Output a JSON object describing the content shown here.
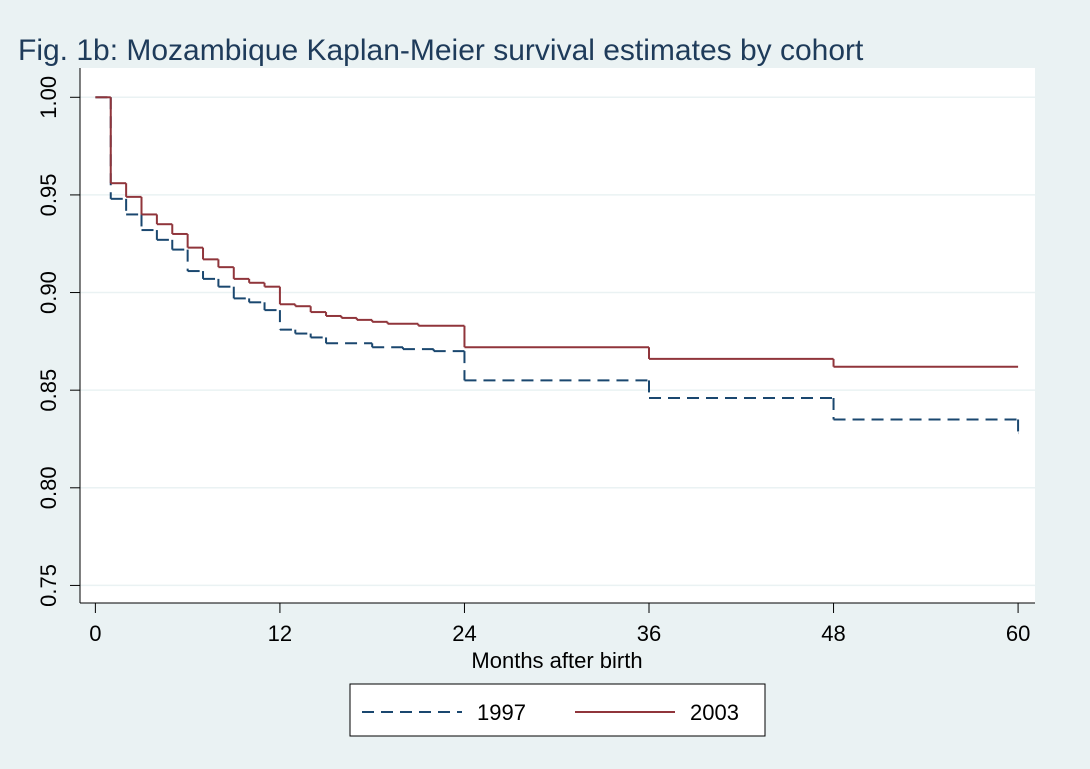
{
  "chart_data": {
    "type": "step",
    "title": "Fig. 1b: Mozambique Kaplan-Meier survival estimates by cohort",
    "x_label": "Months after birth",
    "xlim": [
      -1,
      61.1
    ],
    "xticks": [
      0,
      12,
      24,
      36,
      48,
      60
    ],
    "ylim": [
      0.741,
      1.015
    ],
    "yticks": [
      {
        "value": 1,
        "label": "1.00"
      },
      0.95,
      {
        "value": 0.9,
        "label": "0.90"
      },
      0.85,
      {
        "value": 0.8,
        "label": "0.80"
      },
      0.75
    ],
    "grid": true,
    "series": [
      {
        "name": "1997",
        "color": "#1a476f",
        "dash": true,
        "x": [
          0,
          1,
          2,
          3,
          4,
          5,
          6,
          7,
          8,
          9,
          10,
          11,
          12,
          13,
          14,
          15,
          18,
          20,
          22,
          24,
          36,
          48,
          60
        ],
        "values": [
          1,
          0.948,
          0.94,
          0.932,
          0.927,
          0.922,
          0.911,
          0.907,
          0.903,
          0.897,
          0.895,
          0.891,
          0.881,
          0.879,
          0.877,
          0.874,
          0.872,
          0.871,
          0.87,
          0.855,
          0.846,
          0.835,
          0.828
        ]
      },
      {
        "name": "2003",
        "color": "#90353b",
        "dash": false,
        "x": [
          0,
          1,
          2,
          3,
          4,
          5,
          6,
          7,
          8,
          9,
          10,
          11,
          12,
          13,
          14,
          15,
          16,
          17,
          18,
          19,
          21,
          24,
          36,
          48,
          60
        ],
        "values": [
          1,
          0.956,
          0.949,
          0.94,
          0.935,
          0.93,
          0.923,
          0.917,
          0.913,
          0.907,
          0.905,
          0.903,
          0.894,
          0.893,
          0.89,
          0.888,
          0.887,
          0.886,
          0.885,
          0.884,
          0.883,
          0.872,
          0.866,
          0.862,
          0.862
        ]
      }
    ]
  }
}
